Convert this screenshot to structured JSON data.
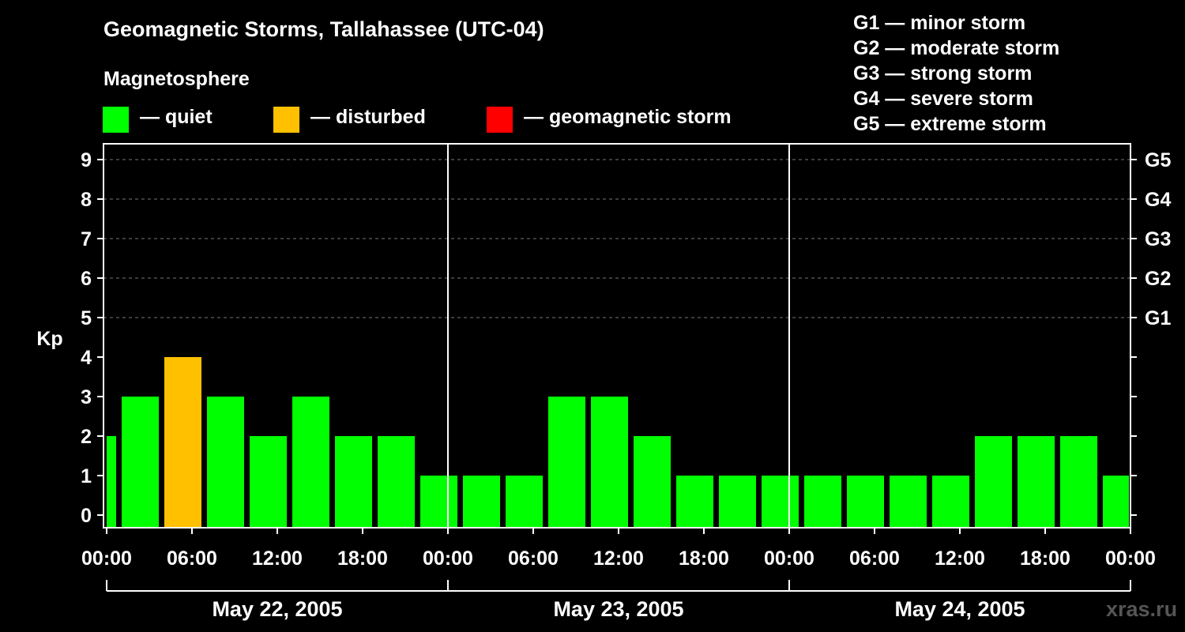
{
  "title": "Geomagnetic Storms, Tallahassee (UTC-04)",
  "legend": {
    "heading": "Magnetosphere",
    "items": [
      {
        "label": "— quiet",
        "color": "#00ff00"
      },
      {
        "label": "— disturbed",
        "color": "#ffc000"
      },
      {
        "label": "— geomagnetic storm",
        "color": "#ff0000"
      }
    ]
  },
  "g_scale": [
    {
      "label": "G1 — minor storm"
    },
    {
      "label": "G2 — moderate storm"
    },
    {
      "label": "G3 — strong storm"
    },
    {
      "label": "G4 — severe storm"
    },
    {
      "label": "G5 — extreme storm"
    }
  ],
  "watermark": "xras.ru",
  "chart_data": {
    "type": "bar",
    "ylabel": "Kp",
    "ylim": [
      0,
      9
    ],
    "yticks": [
      "0",
      "1",
      "2",
      "3",
      "4",
      "5",
      "6",
      "7",
      "8",
      "9"
    ],
    "right_ticks": [
      {
        "kp": 5,
        "label": "G1"
      },
      {
        "kp": 6,
        "label": "G2"
      },
      {
        "kp": 7,
        "label": "G3"
      },
      {
        "kp": 8,
        "label": "G4"
      },
      {
        "kp": 9,
        "label": "G5"
      }
    ],
    "x_tick_labels": [
      "00:00",
      "06:00",
      "12:00",
      "18:00",
      "00:00",
      "06:00",
      "12:00",
      "18:00",
      "00:00",
      "06:00",
      "12:00",
      "18:00",
      "00:00"
    ],
    "days": [
      "May 22, 2005",
      "May 23, 2005",
      "May 24, 2005"
    ],
    "grid": "dashed horizontal at Kp 5-9",
    "interval_hours": 3,
    "start_hour": -2,
    "values": [
      2,
      3,
      4,
      3,
      2,
      3,
      2,
      2,
      1,
      1,
      1,
      3,
      3,
      2,
      1,
      1,
      1,
      1,
      1,
      1,
      1,
      2,
      2,
      2,
      1
    ],
    "colors": {
      "quiet": "#00ff00",
      "disturbed": "#ffc000",
      "storm": "#ff0000"
    }
  }
}
